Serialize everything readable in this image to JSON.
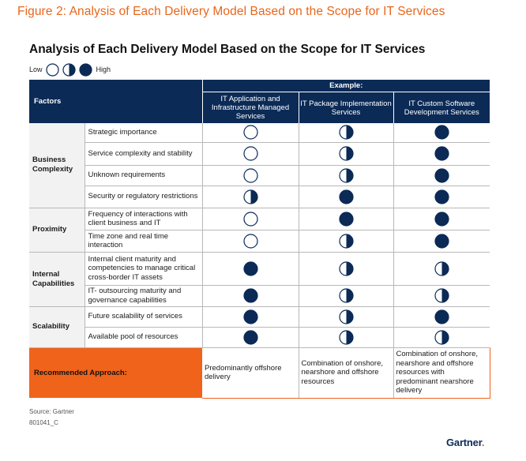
{
  "figure_title": "Figure 2: Analysis of Each Delivery Model Based on the Scope for IT Services",
  "chart_title": "Analysis of Each Delivery Model Based on the Scope for IT Services",
  "legend": {
    "low": "Low",
    "high": "High",
    "levels": [
      "none",
      "half",
      "full"
    ]
  },
  "table": {
    "factors_header": "Factors",
    "example_header": "Example:",
    "columns": [
      "IT Application and Infrastructure Managed Services",
      "IT Package Implementation Services",
      "IT Custom Software Development Services"
    ],
    "groups": [
      {
        "name": "Business Complexity",
        "rows": [
          {
            "factor": "Strategic importance",
            "ratings": [
              "none",
              "half",
              "full"
            ]
          },
          {
            "factor": "Service complexity and stability",
            "ratings": [
              "none",
              "half",
              "full"
            ]
          },
          {
            "factor": "Unknown requirements",
            "ratings": [
              "none",
              "half",
              "full"
            ]
          },
          {
            "factor": "Security or regulatory restrictions",
            "ratings": [
              "half",
              "full",
              "full"
            ]
          }
        ]
      },
      {
        "name": "Proximity",
        "rows": [
          {
            "factor": "Frequency of interactions with client business and IT",
            "ratings": [
              "none",
              "full",
              "full"
            ]
          },
          {
            "factor": "Time zone and real time interaction",
            "ratings": [
              "none",
              "half",
              "full"
            ]
          }
        ]
      },
      {
        "name": "Internal Capabilities",
        "rows": [
          {
            "factor": "Internal client maturity and competencies to manage critical cross-border IT assets",
            "ratings": [
              "full",
              "half",
              "half"
            ]
          },
          {
            "factor": "IT- outsourcing maturity and governance capabilities",
            "ratings": [
              "full",
              "half",
              "half"
            ]
          }
        ]
      },
      {
        "name": "Scalability",
        "rows": [
          {
            "factor": "Future scalability of services",
            "ratings": [
              "full",
              "half",
              "full"
            ]
          },
          {
            "factor": "Available pool of resources",
            "ratings": [
              "full",
              "half",
              "half"
            ]
          }
        ]
      }
    ],
    "recommended": {
      "label": "Recommended Approach:",
      "values": [
        "Predominantly offshore delivery",
        "Combination of onshore, nearshore and offshore resources",
        "Combination of onshore, nearshore and offshore resources with predominant nearshore delivery"
      ]
    }
  },
  "source": "Source: Gartner",
  "doc_id": "801041_C",
  "brand": {
    "name": "Gartner",
    "dot": "."
  },
  "colors": {
    "navy": "#0b2a56",
    "orange": "#f0631a",
    "title_orange": "#e8661c"
  }
}
